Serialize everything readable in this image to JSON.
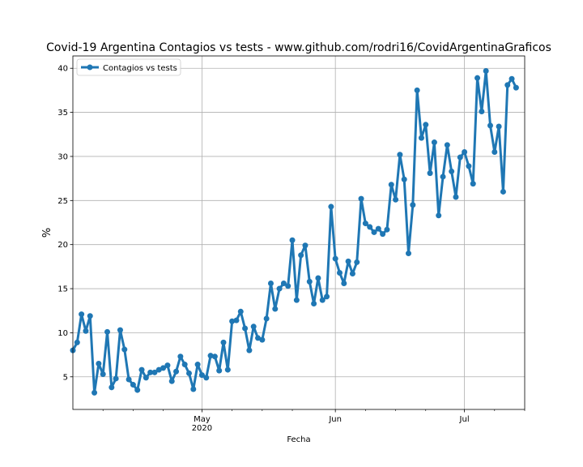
{
  "chart_data": {
    "type": "line",
    "title": "Covid-19 Argentina Contagios vs tests - www.github.com/rodri16/CovidArgentinaGraficos",
    "xlabel": "Fecha",
    "ylabel": "%",
    "grid": true,
    "legend_position": "upper left",
    "xlim": [
      "2020-04-01",
      "2020-07-15"
    ],
    "ylim": [
      1.3,
      41.4
    ],
    "x_ticks": [
      {
        "date": "2020-05-01",
        "label": "May",
        "sublabel": "2020"
      },
      {
        "date": "2020-06-01",
        "label": "Jun",
        "sublabel": ""
      },
      {
        "date": "2020-07-01",
        "label": "Jul",
        "sublabel": ""
      }
    ],
    "x_minor_ticks": [
      "2020-04-08",
      "2020-04-15",
      "2020-04-22",
      "2020-05-08",
      "2020-05-15",
      "2020-05-22",
      "2020-06-08",
      "2020-06-15",
      "2020-06-22",
      "2020-07-08",
      "2020-07-15"
    ],
    "y_ticks": [
      5,
      10,
      15,
      20,
      25,
      30,
      35,
      40
    ],
    "series": [
      {
        "name": "Contagios vs tests",
        "color": "#1f77b4",
        "start_date": "2020-04-01",
        "values": [
          8.0,
          8.9,
          12.1,
          10.2,
          11.9,
          3.2,
          6.5,
          5.3,
          10.1,
          3.8,
          4.8,
          10.3,
          8.1,
          4.7,
          4.1,
          3.5,
          5.8,
          4.9,
          5.5,
          5.5,
          5.8,
          6.0,
          6.3,
          4.5,
          5.6,
          7.3,
          6.4,
          5.4,
          3.6,
          6.4,
          5.2,
          4.9,
          7.4,
          7.3,
          5.7,
          8.9,
          5.8,
          11.3,
          11.4,
          12.4,
          10.5,
          8.0,
          10.7,
          9.4,
          9.2,
          11.6,
          15.6,
          12.7,
          15.0,
          15.6,
          15.3,
          20.5,
          13.7,
          18.8,
          19.9,
          15.8,
          13.3,
          16.2,
          13.7,
          14.1,
          24.3,
          18.4,
          16.8,
          15.6,
          18.1,
          16.7,
          18.0,
          25.2,
          22.4,
          22.0,
          21.4,
          21.8,
          21.2,
          21.7,
          26.8,
          25.1,
          30.2,
          27.4,
          19.0,
          24.5,
          37.5,
          32.1,
          33.6,
          28.1,
          31.6,
          23.3,
          27.7,
          31.3,
          28.3,
          25.4,
          29.9,
          30.5,
          28.9,
          26.9,
          38.9,
          35.1,
          39.7,
          33.5,
          30.5,
          33.4,
          26.0,
          38.1,
          38.8,
          37.8
        ]
      }
    ]
  }
}
